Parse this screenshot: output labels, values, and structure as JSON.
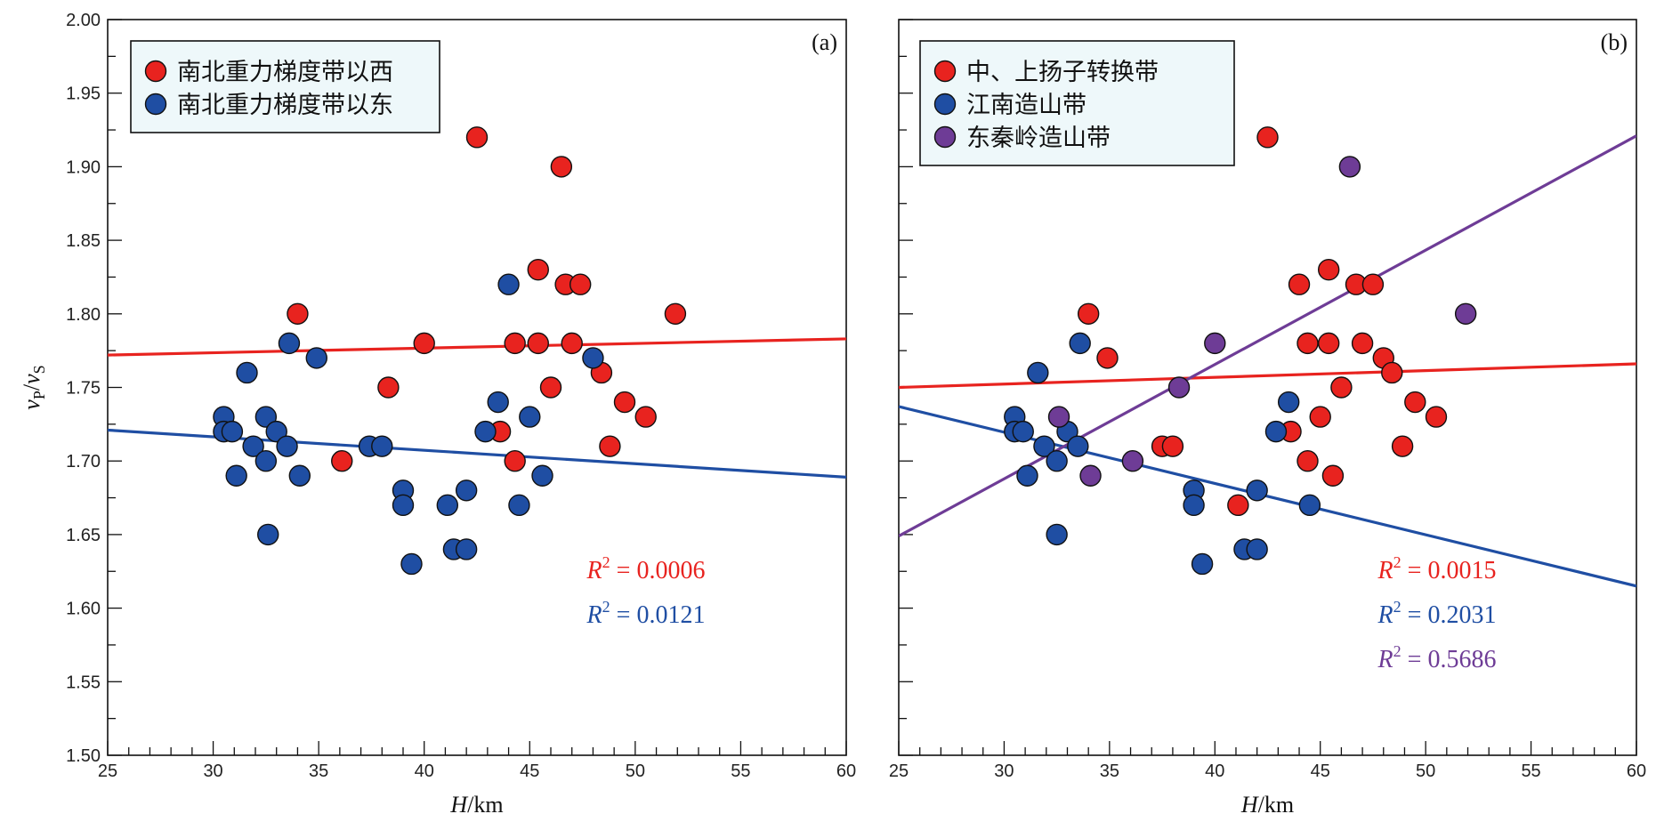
{
  "chart_data": [
    {
      "type": "scatter",
      "panel_label": "(a)",
      "xlabel": "H/km",
      "ylabel": "vP/vS",
      "xlim": [
        25,
        60
      ],
      "ylim": [
        1.5,
        2.0
      ],
      "x_ticks": [
        "25",
        "30",
        "35",
        "40",
        "45",
        "50",
        "55",
        "60"
      ],
      "y_ticks": [
        "1.50",
        "1.55",
        "1.60",
        "1.65",
        "1.70",
        "1.75",
        "1.80",
        "1.85",
        "1.90",
        "1.95",
        "2.00"
      ],
      "grid": false,
      "legend_position": "top-left",
      "series": [
        {
          "name": "南北重力梯度带以西",
          "color": "#e8231f",
          "points": [
            [
              34.0,
              1.8
            ],
            [
              36.1,
              1.7
            ],
            [
              38.3,
              1.75
            ],
            [
              40.0,
              1.78
            ],
            [
              42.5,
              1.92
            ],
            [
              43.6,
              1.72
            ],
            [
              44.3,
              1.7
            ],
            [
              44.3,
              1.78
            ],
            [
              45.4,
              1.83
            ],
            [
              45.4,
              1.78
            ],
            [
              46.0,
              1.75
            ],
            [
              46.5,
              1.9
            ],
            [
              46.7,
              1.82
            ],
            [
              47.0,
              1.78
            ],
            [
              47.4,
              1.82
            ],
            [
              48.4,
              1.76
            ],
            [
              48.8,
              1.71
            ],
            [
              49.5,
              1.74
            ],
            [
              50.5,
              1.73
            ],
            [
              51.9,
              1.8
            ]
          ],
          "trend": [
            [
              25,
              1.772
            ],
            [
              60,
              1.783
            ]
          ],
          "r2_label": "R",
          "r2_value": "0.0006"
        },
        {
          "name": "南北重力梯度带以东",
          "color": "#1f4ea3",
          "points": [
            [
              30.5,
              1.73
            ],
            [
              30.5,
              1.72
            ],
            [
              30.9,
              1.72
            ],
            [
              31.1,
              1.69
            ],
            [
              31.6,
              1.76
            ],
            [
              31.9,
              1.71
            ],
            [
              32.5,
              1.73
            ],
            [
              32.5,
              1.7
            ],
            [
              32.6,
              1.65
            ],
            [
              33.0,
              1.72
            ],
            [
              33.5,
              1.71
            ],
            [
              33.6,
              1.78
            ],
            [
              34.1,
              1.69
            ],
            [
              34.9,
              1.77
            ],
            [
              37.4,
              1.71
            ],
            [
              38.0,
              1.71
            ],
            [
              39.0,
              1.68
            ],
            [
              39.0,
              1.67
            ],
            [
              39.4,
              1.63
            ],
            [
              41.1,
              1.67
            ],
            [
              41.4,
              1.64
            ],
            [
              42.0,
              1.68
            ],
            [
              42.0,
              1.64
            ],
            [
              42.9,
              1.72
            ],
            [
              43.5,
              1.74
            ],
            [
              44.0,
              1.82
            ],
            [
              44.5,
              1.67
            ],
            [
              45.0,
              1.73
            ],
            [
              45.6,
              1.69
            ],
            [
              48.0,
              1.77
            ]
          ],
          "trend": [
            [
              25,
              1.721
            ],
            [
              60,
              1.689
            ]
          ],
          "r2_label": "R",
          "r2_value": "0.0121"
        }
      ]
    },
    {
      "type": "scatter",
      "panel_label": "(b)",
      "xlabel": "H/km",
      "xlim": [
        25,
        60
      ],
      "ylim": [
        1.5,
        2.0
      ],
      "x_ticks": [
        "25",
        "30",
        "35",
        "40",
        "45",
        "50",
        "55",
        "60"
      ],
      "grid": false,
      "legend_position": "top-left",
      "series": [
        {
          "name": "中、上扬子转换带",
          "color": "#e8231f",
          "points": [
            [
              34.0,
              1.8
            ],
            [
              34.9,
              1.77
            ],
            [
              37.5,
              1.71
            ],
            [
              38.0,
              1.71
            ],
            [
              41.1,
              1.67
            ],
            [
              42.5,
              1.92
            ],
            [
              43.6,
              1.72
            ],
            [
              44.0,
              1.82
            ],
            [
              44.4,
              1.7
            ],
            [
              44.4,
              1.78
            ],
            [
              45.0,
              1.73
            ],
            [
              45.4,
              1.83
            ],
            [
              45.4,
              1.78
            ],
            [
              45.6,
              1.69
            ],
            [
              46.0,
              1.75
            ],
            [
              46.7,
              1.82
            ],
            [
              47.0,
              1.78
            ],
            [
              47.5,
              1.82
            ],
            [
              48.0,
              1.77
            ],
            [
              48.4,
              1.76
            ],
            [
              48.9,
              1.71
            ],
            [
              49.5,
              1.74
            ],
            [
              50.5,
              1.73
            ]
          ],
          "trend": [
            [
              25,
              1.75
            ],
            [
              60,
              1.766
            ]
          ],
          "r2_label": "R",
          "r2_value": "0.0015"
        },
        {
          "name": "江南造山带",
          "color": "#1f4ea3",
          "points": [
            [
              30.5,
              1.73
            ],
            [
              30.5,
              1.72
            ],
            [
              30.9,
              1.72
            ],
            [
              31.1,
              1.69
            ],
            [
              31.6,
              1.76
            ],
            [
              31.9,
              1.71
            ],
            [
              32.5,
              1.7
            ],
            [
              32.5,
              1.65
            ],
            [
              33.0,
              1.72
            ],
            [
              33.5,
              1.71
            ],
            [
              33.6,
              1.78
            ],
            [
              39.0,
              1.68
            ],
            [
              39.0,
              1.67
            ],
            [
              39.4,
              1.63
            ],
            [
              41.4,
              1.64
            ],
            [
              42.0,
              1.68
            ],
            [
              42.0,
              1.64
            ],
            [
              42.9,
              1.72
            ],
            [
              43.5,
              1.74
            ],
            [
              44.5,
              1.67
            ]
          ],
          "trend": [
            [
              25,
              1.737
            ],
            [
              60,
              1.615
            ]
          ],
          "r2_label": "R",
          "r2_value": "0.2031"
        },
        {
          "name": "东秦岭造山带",
          "color": "#6e3c96",
          "points": [
            [
              32.6,
              1.73
            ],
            [
              34.1,
              1.69
            ],
            [
              36.1,
              1.7
            ],
            [
              38.3,
              1.75
            ],
            [
              40.0,
              1.78
            ],
            [
              46.4,
              1.9
            ],
            [
              51.9,
              1.8
            ]
          ],
          "trend": [
            [
              25,
              1.649
            ],
            [
              60,
              1.921
            ]
          ],
          "r2_label": "R",
          "r2_value": "0.5686"
        }
      ]
    }
  ]
}
